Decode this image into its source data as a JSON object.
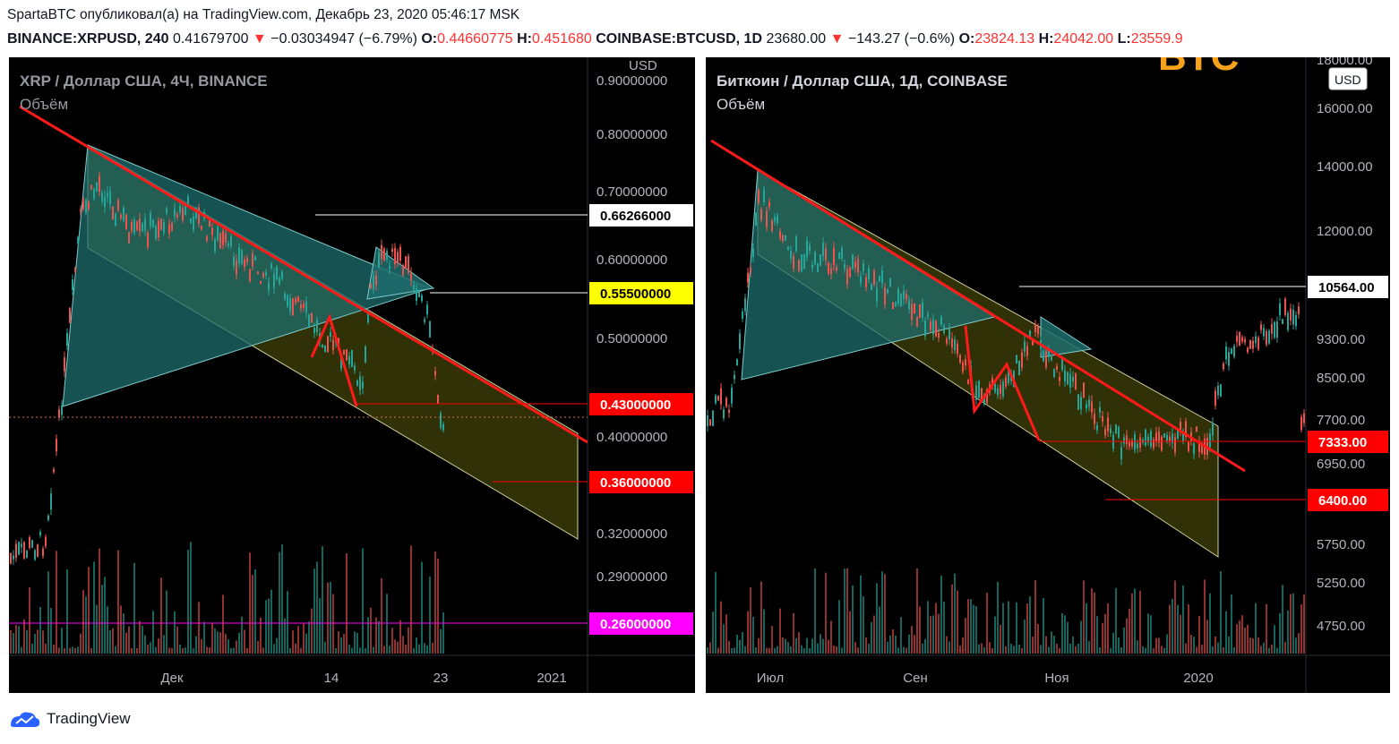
{
  "header": {
    "line1": "SpartaBTC опубликовал(а) на TradingView.com, Декабрь 23, 2020 05:46:17 MSK",
    "left_symbol": "BINANCE:XRPUSD, 240",
    "left_price": "0.41679700",
    "left_change": "−0.03034947 (−6.79%)",
    "left_o_label": "O:",
    "left_o": "0.44660775",
    "left_h_label": "H:",
    "left_h": "0.451680",
    "right_symbol": "COINBASE:BTCUSD, 1D",
    "right_price": "23680.00",
    "right_change": "−143.27 (−0.6%)",
    "right_o_label": "O:",
    "right_o": "23824.13",
    "right_h_label": "H:",
    "right_h": "24042.00",
    "right_l_label": "L:",
    "right_l": "23559.9"
  },
  "footer": {
    "brand": "TradingView"
  },
  "colors": {
    "up": "#26a69a",
    "down": "#ef5350",
    "trend": "#ff1a1a",
    "channel_fill": "#3a3a08",
    "triangle_fill": "#1f6d6d"
  },
  "chart_data": [
    {
      "type": "candlestick",
      "title": "XRP / Доллар США, 4Ч, BINANCE",
      "subtitle": "Объём",
      "currency": "USD",
      "y_ticks": [
        "0.90000000",
        "0.80000000",
        "0.70000000",
        "0.60000000",
        "0.50000000",
        "0.40000000",
        "0.32000000",
        "0.29000000"
      ],
      "x_ticks": [
        "Дек",
        "14",
        "23",
        "2021"
      ],
      "price_labels": [
        {
          "value": "0.66266000",
          "bg": "#ffffff",
          "fg": "#000000"
        },
        {
          "value": "0.55500000",
          "bg": "#ffff00",
          "fg": "#000000"
        },
        {
          "value": "0.43000000",
          "bg": "#ff0000",
          "fg": "#ffffff"
        },
        {
          "value": "0.36000000",
          "bg": "#ff0000",
          "fg": "#ffffff"
        },
        {
          "value": "0.26000000",
          "bg": "#ff00ff",
          "fg": "#ffffff"
        }
      ],
      "last_price": 0.416797
    },
    {
      "type": "candlestick",
      "title": "Биткоин / Доллар США, 1Д, COINBASE",
      "subtitle": "Объём",
      "currency": "USD",
      "y_ticks": [
        "18000.00",
        "16000.00",
        "14000.00",
        "12000.00",
        "9300.00",
        "8500.00",
        "7700.00",
        "6950.00",
        "5750.00",
        "5250.00",
        "4750.00"
      ],
      "x_ticks": [
        "Июл",
        "Сен",
        "Ноя",
        "2020"
      ],
      "price_labels": [
        {
          "value": "10564.00",
          "bg": "#ffffff",
          "fg": "#000000"
        },
        {
          "value": "7333.00",
          "bg": "#ff0000",
          "fg": "#ffffff"
        },
        {
          "value": "6400.00",
          "bg": "#ff0000",
          "fg": "#ffffff"
        }
      ]
    }
  ]
}
